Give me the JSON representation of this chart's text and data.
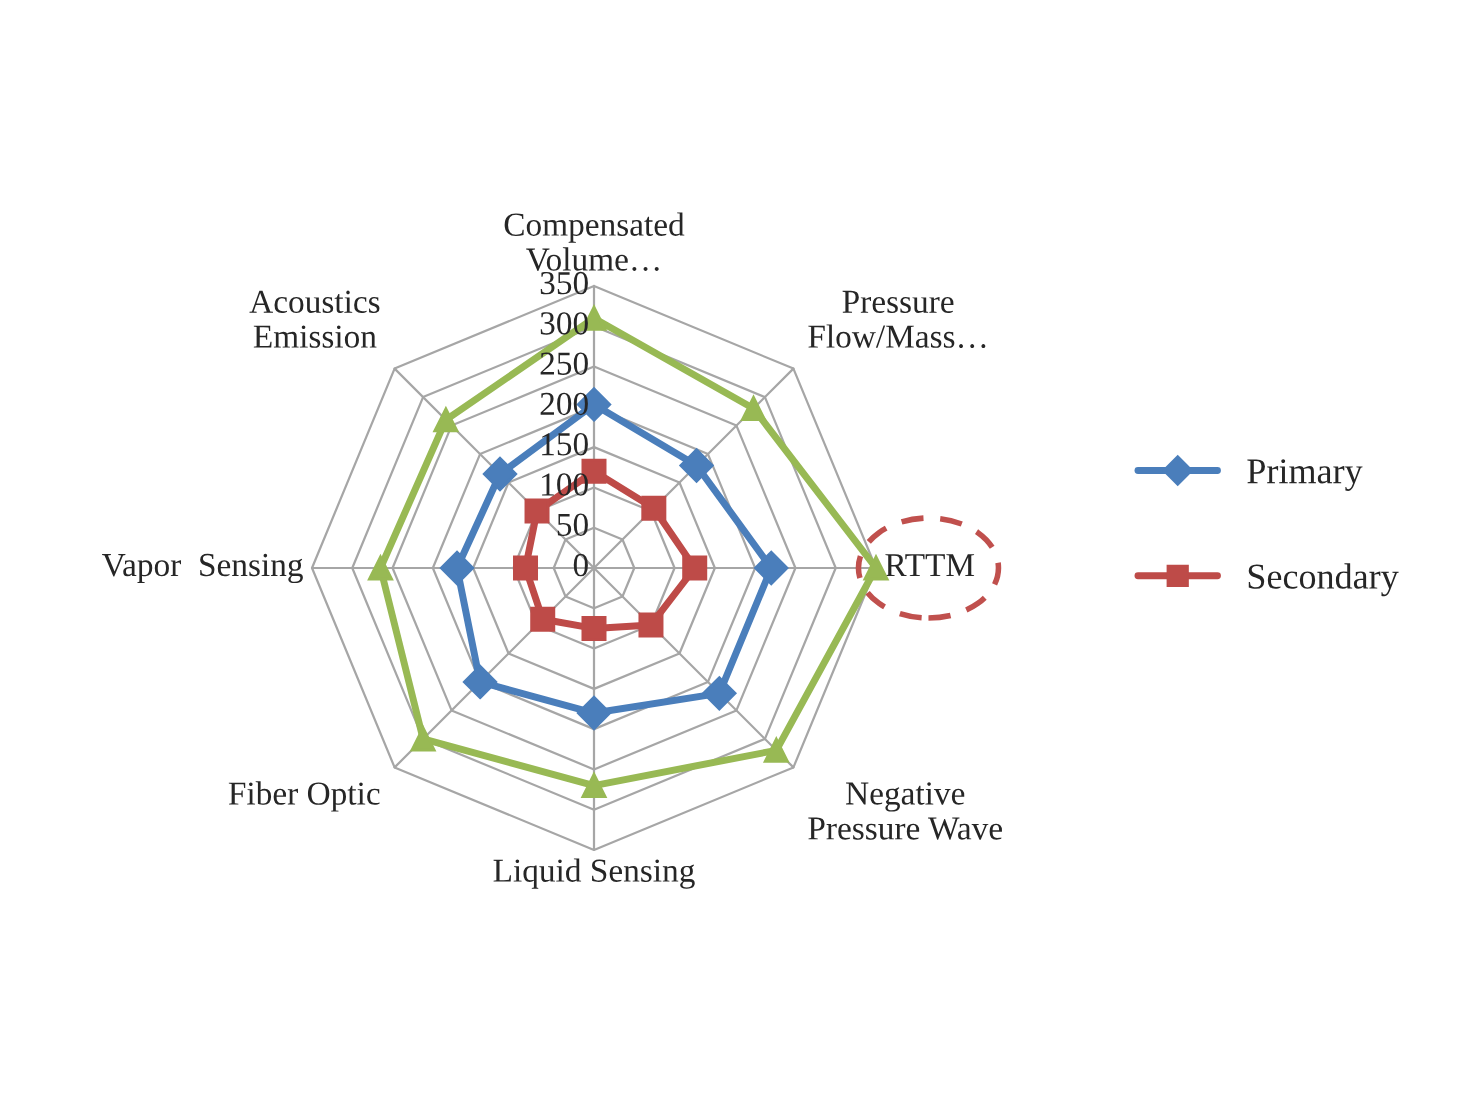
{
  "chart_data": {
    "type": "radar",
    "categories": [
      "Compensated\nVolume…",
      "Pressure\nFlow/Mass…",
      "RTTM",
      "Negative\nPressure Wave",
      "Liquid Sensing",
      "Fiber Optic",
      "Vapor  Sensing",
      "Acoustics\nEmission"
    ],
    "series": [
      {
        "name": "Primary",
        "color": "#4a7ebb",
        "marker": "diamond",
        "values": [
          203,
          180,
          220,
          220,
          180,
          200,
          170,
          165
        ]
      },
      {
        "name": "Secondary",
        "color": "#be4b48",
        "marker": "square",
        "values": [
          120,
          105,
          125,
          100,
          75,
          90,
          85,
          100
        ]
      },
      {
        "color": "#98b954",
        "marker": "triangle",
        "values": [
          310,
          280,
          350,
          320,
          270,
          300,
          265,
          260
        ]
      }
    ],
    "ylim": [
      0,
      350
    ],
    "yticks": [
      0,
      50,
      100,
      150,
      200,
      250,
      300,
      350
    ],
    "grid": true,
    "legend": "right"
  }
}
